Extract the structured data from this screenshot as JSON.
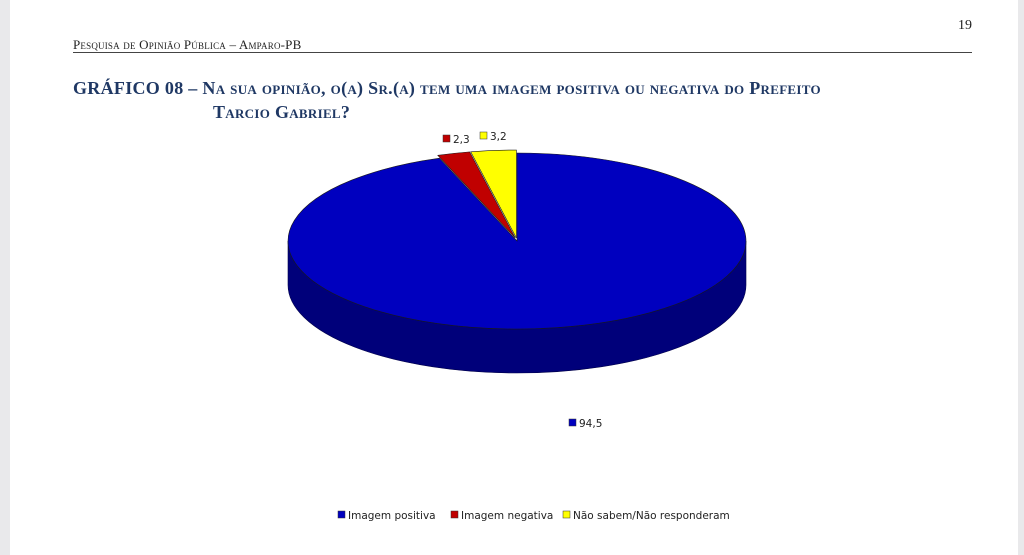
{
  "header": {
    "running_title": "Pesquisa de Opinião Pública – Amparo-PB",
    "page_number": "19"
  },
  "title": {
    "line1": "GRÁFICO 08 – Na sua opinião, o(a) Sr.(a) tem uma imagem positiva ou negativa do Prefeito",
    "line2": "Tarcio Gabriel?"
  },
  "chart_data": {
    "type": "pie",
    "style": "3d",
    "legend_position": "bottom",
    "categories": [
      "Imagem positiva",
      "Imagem negativa",
      "Não sabem/Não responderam"
    ],
    "values": [
      94.5,
      2.3,
      3.2
    ],
    "value_labels": [
      "94,5",
      "2,3",
      "3,2"
    ],
    "colors": [
      "#0000bf",
      "#c00000",
      "#ffff00"
    ],
    "side_colors": [
      "#00007a",
      "#7a0000",
      "#a8a800"
    ]
  }
}
